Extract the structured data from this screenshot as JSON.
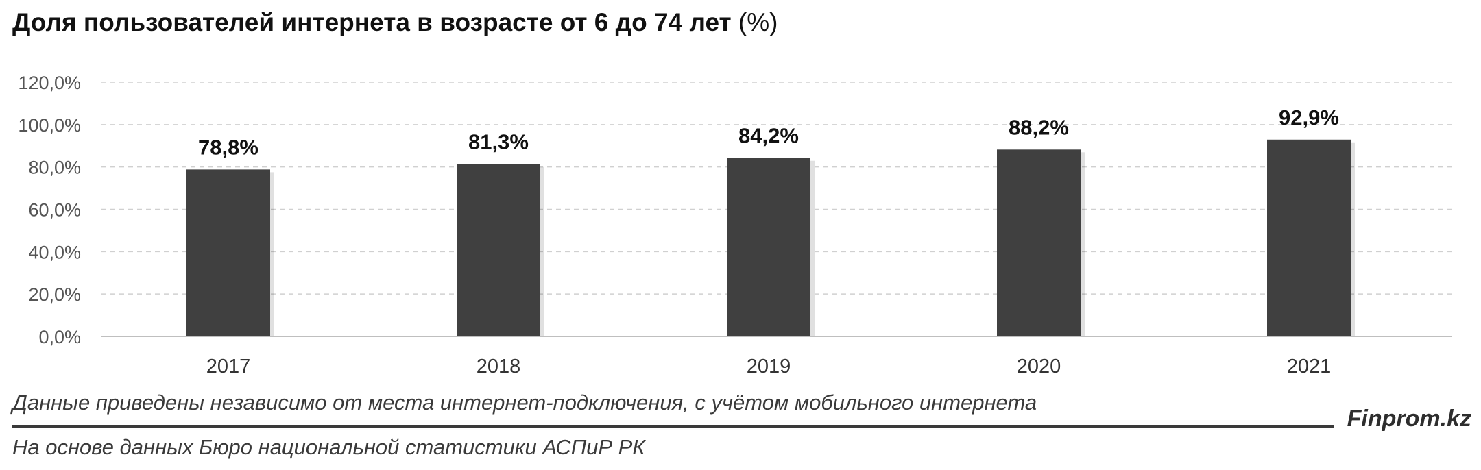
{
  "title_main": "Доля пользователей интернета в возрасте от 6 до 74 лет",
  "title_unit": "(%)",
  "note": "Данные приведены независимо от места интернет-подключения, с учётом мобильного интернета",
  "source": "На основе данных Бюро национальной статистики АСПиР РК",
  "brand": "Finprom.kz",
  "colors": {
    "bar": "#404040",
    "grid": "#d0d0d0",
    "axis": "#bfbfbf",
    "text": "#111111",
    "tick": "#555555"
  },
  "chart_data": {
    "type": "bar",
    "categories": [
      "2017",
      "2018",
      "2019",
      "2020",
      "2021"
    ],
    "values": [
      78.8,
      81.3,
      84.2,
      88.2,
      92.9
    ],
    "data_labels": [
      "78,8%",
      "81,3%",
      "84,2%",
      "88,2%",
      "92,9%"
    ],
    "y_ticks": [
      0,
      20,
      40,
      60,
      80,
      100,
      120
    ],
    "y_tick_labels": [
      "0,0%",
      "20,0%",
      "40,0%",
      "60,0%",
      "80,0%",
      "100,0%",
      "120,0%"
    ],
    "ylim": [
      0,
      120
    ],
    "grid": true,
    "legend": "none"
  }
}
